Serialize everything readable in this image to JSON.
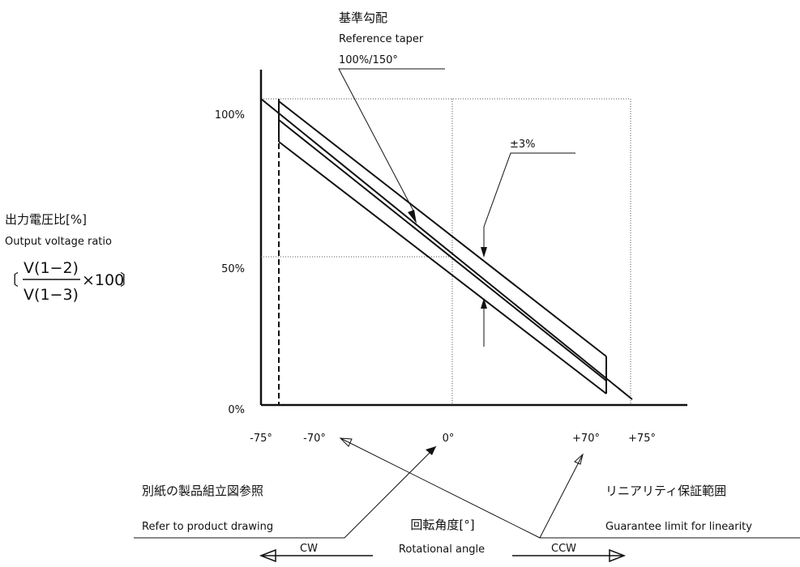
{
  "labels": {
    "taper_jp": "基準勾配",
    "taper_en": "Reference taper",
    "taper_value": "100%/150°",
    "tolerance": "±3%",
    "ylabel_jp": "出力電圧比[%]",
    "ylabel_en": "Output voltage ratio",
    "formula_open": "〔",
    "formula_num": "V(1−2)",
    "formula_den": "V(1−3)",
    "formula_mult": "×100",
    "formula_close": "〕",
    "drawing_jp": "別紙の製品組立図参照",
    "drawing_en": "Refer to product drawing",
    "linearity_jp": "リニアリティ保証範囲",
    "linearity_en": "Guarantee limit for linearity",
    "xlabel_jp": "回転角度[°]",
    "xlabel_en": "Rotational  angle",
    "cw": "CW",
    "ccw": "CCW"
  },
  "chart_data": {
    "type": "line",
    "x_ticks": [
      "-75°",
      "-70°",
      "0°",
      "+70°",
      "+75°"
    ],
    "y_ticks": [
      "100%",
      "50%",
      "0%"
    ],
    "series": [
      {
        "x": [
          -75,
          75
        ],
        "y": [
          100,
          0
        ]
      },
      {
        "x": [
          -70,
          70
        ],
        "y": [
          96.7,
          3.3
        ]
      },
      {
        "x": [
          -70,
          70
        ],
        "y": [
          93.7,
          0.3
        ]
      },
      {
        "x": [
          -70,
          70
        ],
        "y": [
          99.7,
          6.3
        ]
      }
    ]
  }
}
